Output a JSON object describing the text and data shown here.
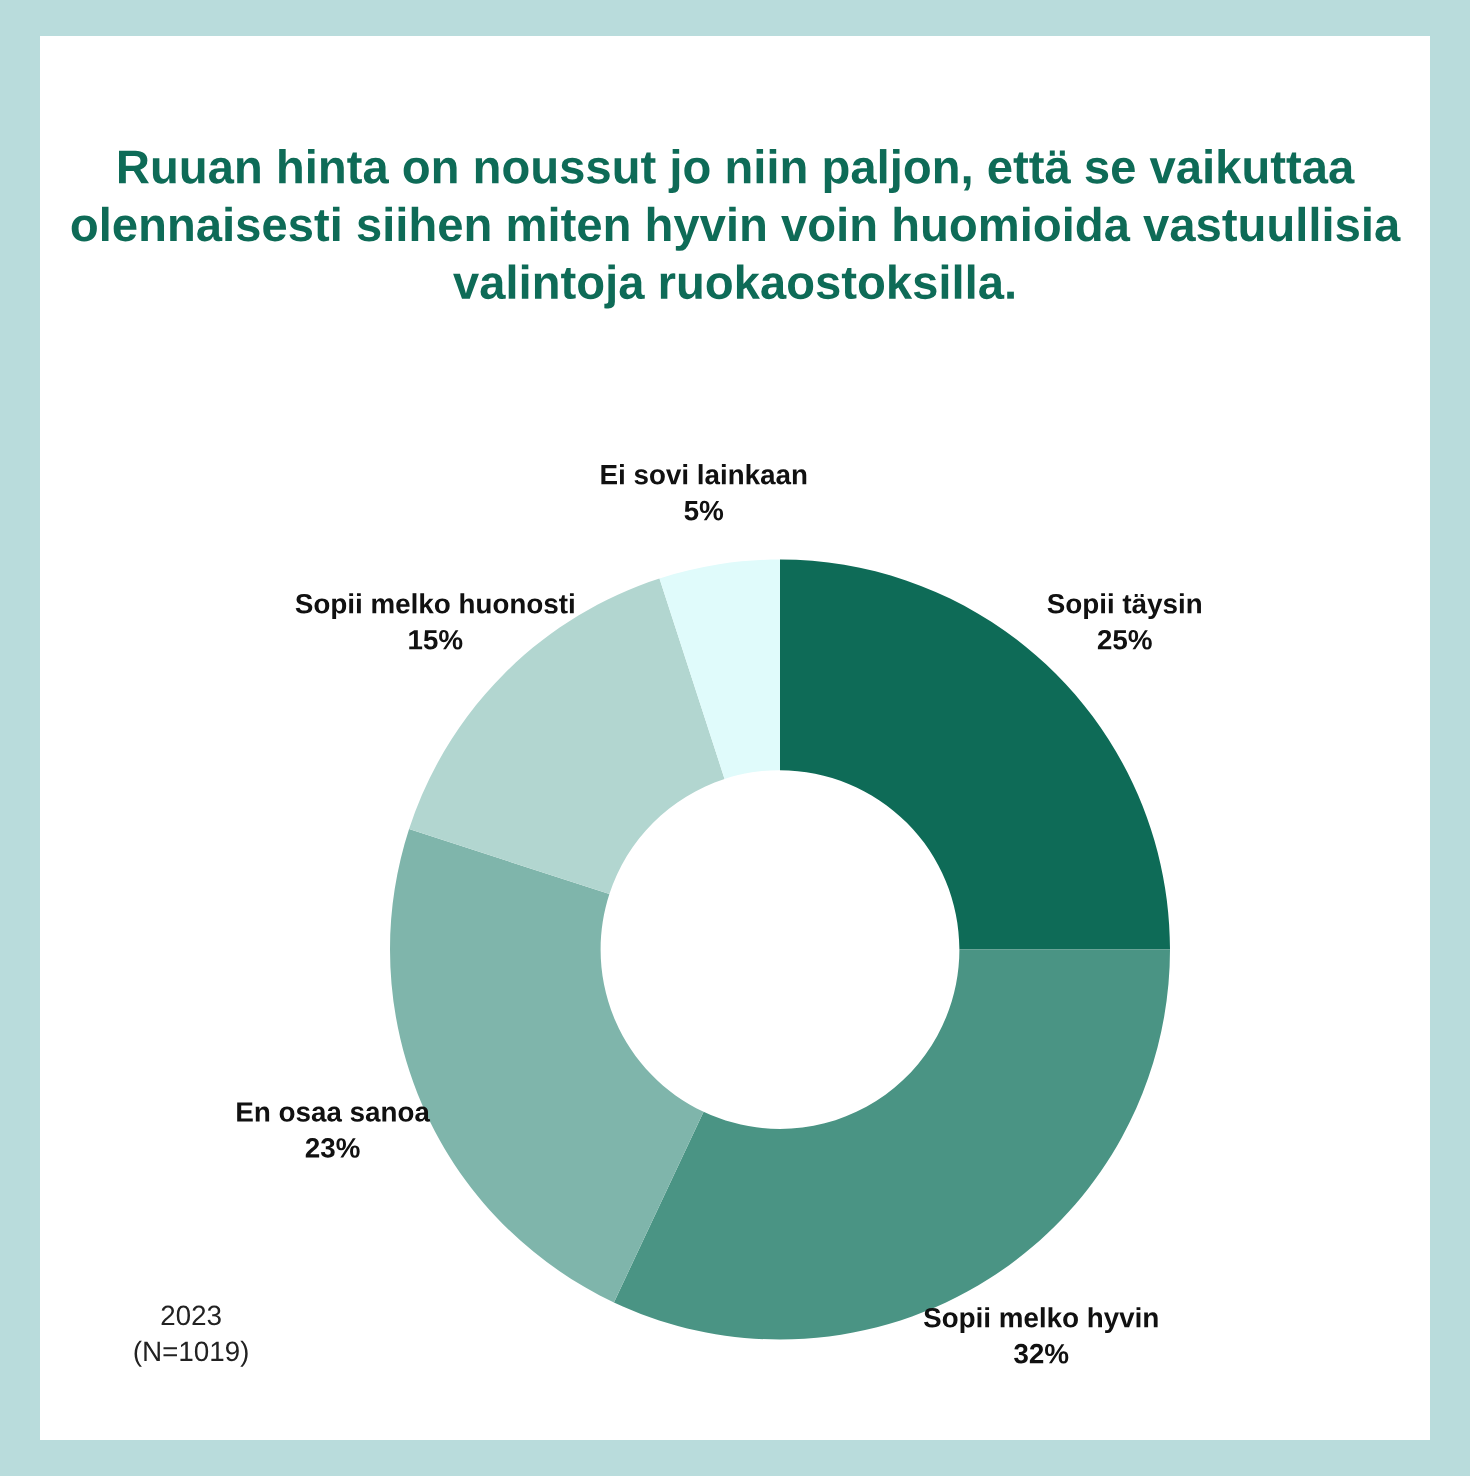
{
  "chart_data": {
    "type": "donut",
    "title": "Ruuan hinta on noussut jo niin paljon, että se vaikuttaa olennaisesti siihen miten hyvin voin huomioida vastuullisia valintoja ruokaostoksilla.",
    "categories": [
      "Sopii täysin",
      "Sopii melko hyvin",
      "En osaa sanoa",
      "Sopii melko huonosti",
      "Ei sovi lainkaan"
    ],
    "values": [
      25,
      32,
      23,
      15,
      5
    ],
    "colors": [
      "#0e6b57",
      "#4a9484",
      "#7fb5ab",
      "#b2d6d0",
      "#e0fbfb"
    ],
    "value_labels": [
      "25%",
      "32%",
      "23%",
      "15%",
      "5%"
    ],
    "legend": false,
    "annotations": [
      "2023\n(N=1019)"
    ]
  }
}
